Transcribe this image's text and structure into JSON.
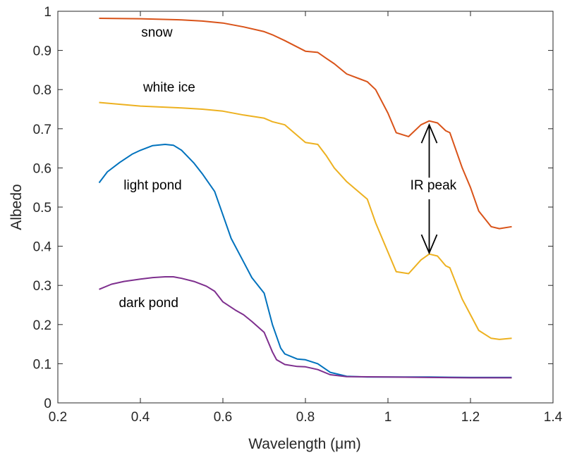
{
  "chart_data": {
    "type": "line",
    "xlabel": "Wavelength (μm)",
    "ylabel": "Albedo",
    "xlim": [
      0.2,
      1.4
    ],
    "ylim": [
      0,
      1
    ],
    "xticks": [
      "0.2",
      "0.4",
      "0.6",
      "0.8",
      "1",
      "1.2",
      "1.4"
    ],
    "yticks": [
      "0",
      "0.1",
      "0.2",
      "0.3",
      "0.4",
      "0.5",
      "0.6",
      "0.7",
      "0.8",
      "0.9",
      "1"
    ],
    "grid": false,
    "series": [
      {
        "name": "snow",
        "color": "#D95319",
        "x": [
          0.3,
          0.4,
          0.5,
          0.55,
          0.6,
          0.65,
          0.7,
          0.72,
          0.75,
          0.8,
          0.83,
          0.85,
          0.87,
          0.9,
          0.95,
          0.97,
          1.0,
          1.02,
          1.05,
          1.08,
          1.1,
          1.12,
          1.14,
          1.15,
          1.18,
          1.2,
          1.22,
          1.25,
          1.27,
          1.3
        ],
        "y": [
          0.982,
          0.981,
          0.978,
          0.975,
          0.97,
          0.96,
          0.948,
          0.94,
          0.925,
          0.898,
          0.895,
          0.88,
          0.866,
          0.84,
          0.82,
          0.8,
          0.74,
          0.69,
          0.68,
          0.71,
          0.72,
          0.715,
          0.695,
          0.69,
          0.6,
          0.55,
          0.49,
          0.45,
          0.445,
          0.45
        ]
      },
      {
        "name": "white ice",
        "color": "#EDB120",
        "x": [
          0.3,
          0.4,
          0.5,
          0.55,
          0.6,
          0.65,
          0.7,
          0.72,
          0.75,
          0.8,
          0.83,
          0.85,
          0.87,
          0.9,
          0.95,
          0.97,
          1.0,
          1.02,
          1.05,
          1.08,
          1.1,
          1.12,
          1.14,
          1.15,
          1.18,
          1.2,
          1.22,
          1.25,
          1.27,
          1.3
        ],
        "y": [
          0.767,
          0.758,
          0.753,
          0.75,
          0.745,
          0.735,
          0.727,
          0.718,
          0.71,
          0.665,
          0.66,
          0.632,
          0.6,
          0.565,
          0.52,
          0.46,
          0.385,
          0.335,
          0.33,
          0.365,
          0.38,
          0.375,
          0.35,
          0.345,
          0.265,
          0.225,
          0.185,
          0.165,
          0.162,
          0.165
        ]
      },
      {
        "name": "light pond",
        "color": "#0072BD",
        "x": [
          0.3,
          0.32,
          0.35,
          0.38,
          0.4,
          0.43,
          0.46,
          0.48,
          0.5,
          0.53,
          0.55,
          0.58,
          0.6,
          0.62,
          0.65,
          0.67,
          0.7,
          0.72,
          0.74,
          0.75,
          0.78,
          0.8,
          0.83,
          0.86,
          0.9,
          0.95,
          1.0,
          1.1,
          1.2,
          1.3
        ],
        "y": [
          0.562,
          0.59,
          0.614,
          0.635,
          0.645,
          0.657,
          0.66,
          0.658,
          0.645,
          0.612,
          0.585,
          0.54,
          0.48,
          0.42,
          0.36,
          0.32,
          0.28,
          0.2,
          0.14,
          0.125,
          0.112,
          0.11,
          0.1,
          0.078,
          0.068,
          0.066,
          0.066,
          0.066,
          0.065,
          0.065
        ]
      },
      {
        "name": "dark pond",
        "color": "#7E2F8E",
        "x": [
          0.3,
          0.33,
          0.36,
          0.4,
          0.43,
          0.46,
          0.48,
          0.5,
          0.53,
          0.56,
          0.58,
          0.6,
          0.63,
          0.65,
          0.67,
          0.7,
          0.72,
          0.73,
          0.75,
          0.78,
          0.8,
          0.83,
          0.86,
          0.9,
          1.0,
          1.1,
          1.2,
          1.3
        ],
        "y": [
          0.29,
          0.303,
          0.31,
          0.316,
          0.32,
          0.322,
          0.322,
          0.318,
          0.31,
          0.298,
          0.285,
          0.258,
          0.237,
          0.225,
          0.208,
          0.18,
          0.13,
          0.11,
          0.098,
          0.093,
          0.092,
          0.085,
          0.072,
          0.067,
          0.066,
          0.065,
          0.064,
          0.064
        ]
      }
    ],
    "annotations": [
      {
        "text": "snow",
        "x": 0.44,
        "y": 0.935
      },
      {
        "text": "white ice",
        "x": 0.47,
        "y": 0.795
      },
      {
        "text": "light pond",
        "x": 0.43,
        "y": 0.545
      },
      {
        "text": "dark pond",
        "x": 0.42,
        "y": 0.245
      },
      {
        "text": "IR peak",
        "x": 1.11,
        "y": 0.545
      }
    ],
    "arrows": [
      {
        "x": 1.1,
        "y_from": 0.575,
        "y_to": 0.71
      },
      {
        "x": 1.1,
        "y_from": 0.52,
        "y_to": 0.383
      }
    ]
  }
}
